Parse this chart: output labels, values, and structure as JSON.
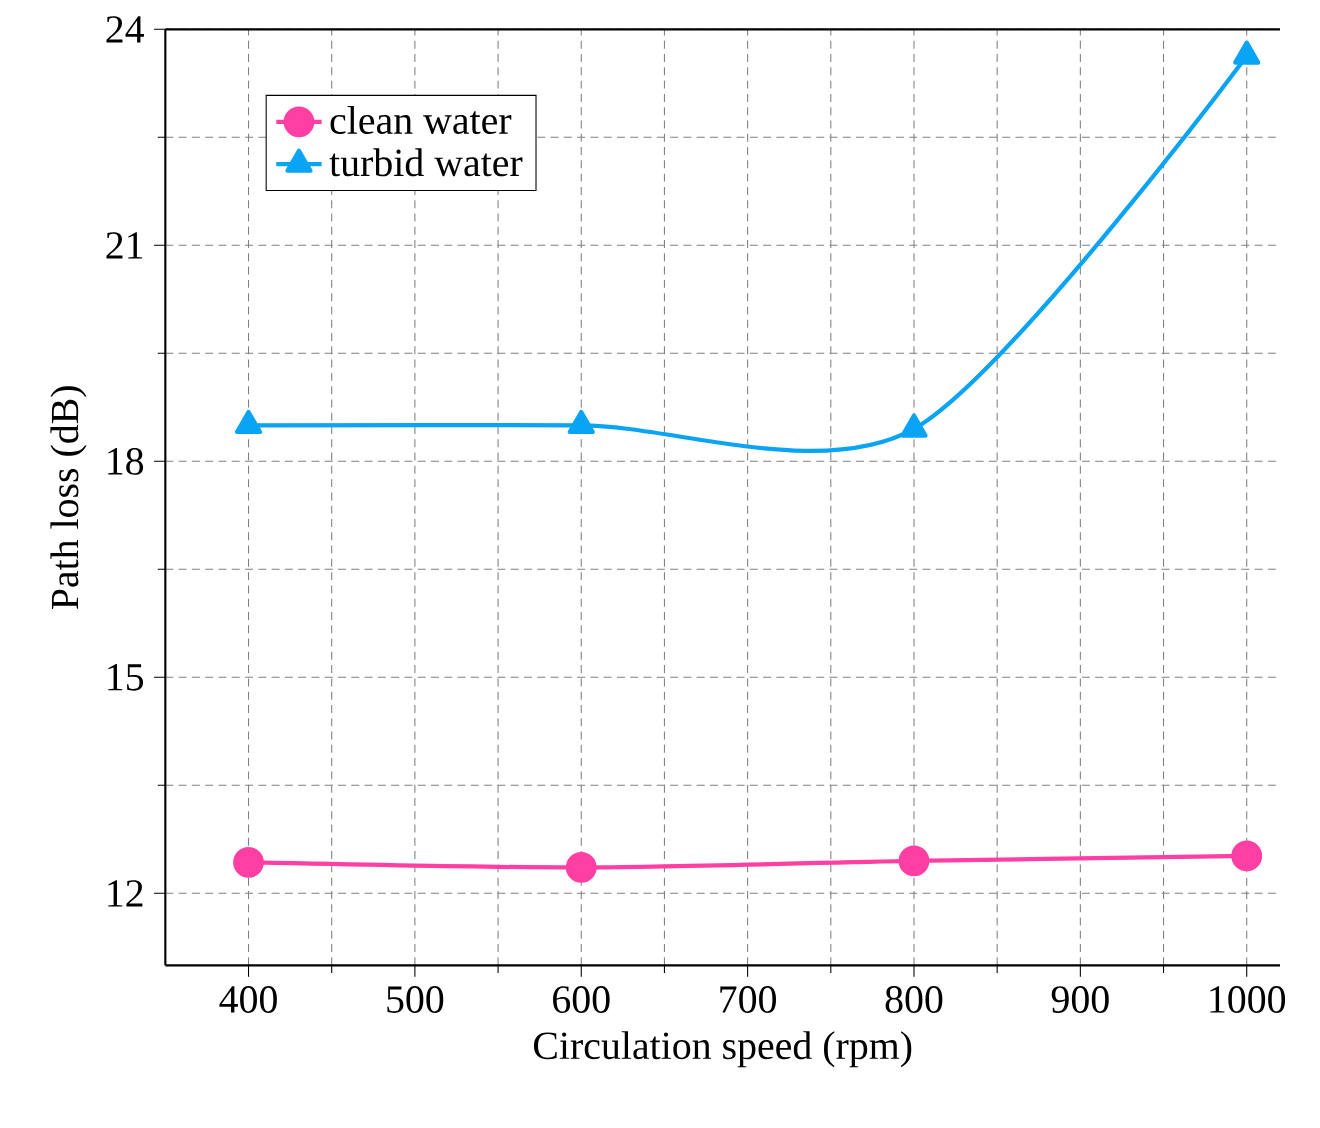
{
  "chart_data": {
    "type": "line",
    "xlabel": "Circulation speed (rpm)",
    "ylabel": "Path loss (dB)",
    "x": [
      400,
      600,
      800,
      1000
    ],
    "series": [
      {
        "name": "clean water",
        "color": "#ff3fa4",
        "marker": "circle",
        "values": [
          12.43,
          12.36,
          12.45,
          12.52
        ]
      },
      {
        "name": "turbid water",
        "color": "#0aa4f5",
        "marker": "triangle",
        "values": [
          18.5,
          18.5,
          18.45,
          23.63
        ]
      }
    ],
    "xlim": [
      350,
      1020
    ],
    "ylim": [
      11,
      24
    ],
    "xticks": [
      400,
      500,
      600,
      700,
      800,
      900,
      1000
    ],
    "yticks": [
      12,
      15,
      18,
      21,
      24
    ],
    "grid": true,
    "legend": "top left",
    "line_style": "solid"
  }
}
